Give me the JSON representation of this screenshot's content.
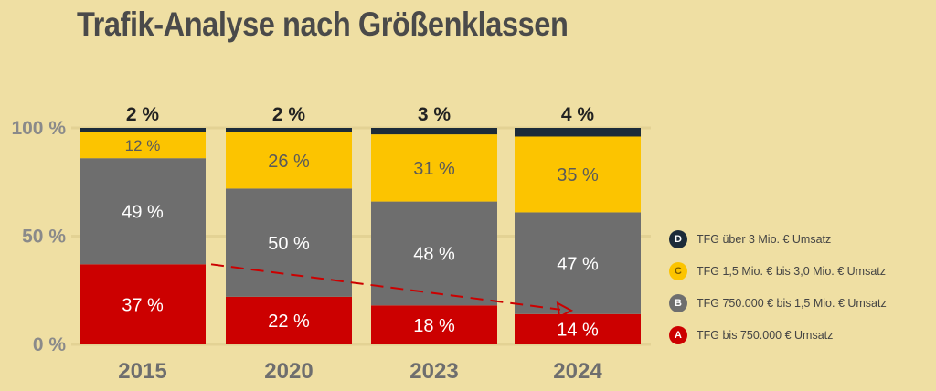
{
  "title": "Trafik-Analyse nach Größenklassen",
  "colors": {
    "background": "#efdfa3",
    "A": "#cc0000",
    "B": "#6e6e6e",
    "C": "#fcc400",
    "D": "#1c2b39",
    "trend": "#cc0000"
  },
  "legend": [
    {
      "letter": "D",
      "label": "TFG über 3 Mio. € Umsatz",
      "color": "#1c2b39",
      "text_color": "#ffffff"
    },
    {
      "letter": "C",
      "label": "TFG 1,5 Mio. € bis 3,0 Mio. € Umsatz",
      "color": "#fcc400",
      "text_color": "#7a5a00"
    },
    {
      "letter": "B",
      "label": "TFG 750.000 € bis 1,5 Mio. € Umsatz",
      "color": "#6e6e6e",
      "text_color": "#ffffff"
    },
    {
      "letter": "A",
      "label": "TFG bis 750.000 € Umsatz",
      "color": "#cc0000",
      "text_color": "#ffffff"
    }
  ],
  "chart_data": {
    "type": "bar",
    "stacked": true,
    "title": "Trafik-Analyse nach Größenklassen",
    "categories": [
      "2015",
      "2020",
      "2023",
      "2024"
    ],
    "y_ticks": [
      "0 %",
      "50 %",
      "100 %"
    ],
    "ylim": [
      0,
      100
    ],
    "series": [
      {
        "name": "A",
        "values": [
          37,
          22,
          18,
          14
        ],
        "labels": [
          "37 %",
          "22 %",
          "18 %",
          "14 %"
        ],
        "color": "#cc0000",
        "label_color": "#ffffff"
      },
      {
        "name": "B",
        "values": [
          49,
          50,
          48,
          47
        ],
        "labels": [
          "49 %",
          "50 %",
          "48 %",
          "47 %"
        ],
        "color": "#6e6e6e",
        "label_color": "#ffffff"
      },
      {
        "name": "C",
        "values": [
          12,
          26,
          31,
          35
        ],
        "labels": [
          "12 %",
          "26 %",
          "31 %",
          "35 %"
        ],
        "color": "#fcc400",
        "label_color": "#5a5a5a"
      },
      {
        "name": "D",
        "values": [
          2,
          2,
          3,
          4
        ],
        "labels": [
          "2 %",
          "2 %",
          "3 %",
          "4 %"
        ],
        "color": "#1c2b39",
        "label_color": "#222222"
      }
    ],
    "trend_arrow": {
      "from_category": "2015",
      "to_category": "2024",
      "series": "A"
    },
    "legend_position": "right"
  }
}
